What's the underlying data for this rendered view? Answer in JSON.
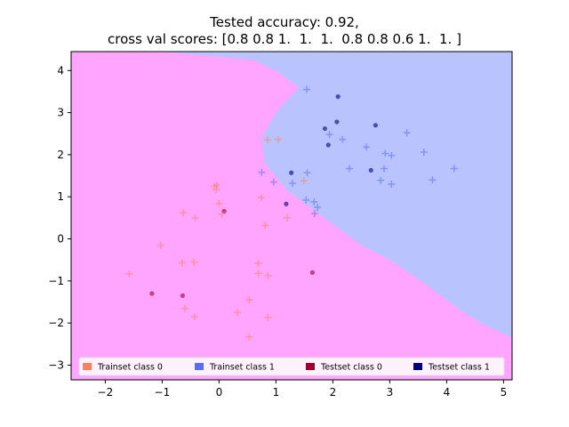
{
  "chart_data": {
    "type": "scatter",
    "title_line1": "Tested accuracy: 0.92,",
    "title_line2": "cross val scores: [0.8 0.8 1.  1.  1.  0.8 0.8 0.6 1.  1. ]",
    "xlabel": "",
    "ylabel": "",
    "xlim": [
      -2.6,
      5.15
    ],
    "ylim": [
      -3.35,
      4.45
    ],
    "xticks": [
      -2,
      -1,
      0,
      1,
      2,
      3,
      4,
      5
    ],
    "yticks": [
      -3,
      -2,
      -1,
      0,
      1,
      2,
      3,
      4
    ],
    "grid": false,
    "legend_position": "lower-center",
    "colors": {
      "region_class0": "#ffa5ff",
      "region_class1": "#b9c4ff",
      "train_class0": "#ff7f5f",
      "train_class1": "#5a6cf5",
      "test_class0": "#a0002a",
      "test_class1": "#000082"
    },
    "decision_boundary": [
      [
        -1.0,
        4.45
      ],
      [
        0.6,
        4.25
      ],
      [
        1.0,
        4.0
      ],
      [
        1.4,
        3.6
      ],
      [
        1.0,
        3.0
      ],
      [
        0.75,
        2.4
      ],
      [
        0.8,
        1.8
      ],
      [
        1.2,
        1.15
      ],
      [
        1.85,
        0.5
      ],
      [
        2.5,
        -0.15
      ],
      [
        3.0,
        -0.5
      ],
      [
        3.5,
        -0.95
      ],
      [
        3.8,
        -1.25
      ],
      [
        4.2,
        -1.65
      ],
      [
        4.6,
        -2.0
      ],
      [
        5.15,
        -2.35
      ]
    ],
    "series": [
      {
        "name": "Trainset class 0",
        "marker": "plus",
        "points": [
          [
            -1.58,
            -0.83
          ],
          [
            -1.03,
            -0.15
          ],
          [
            -0.63,
            0.62
          ],
          [
            -0.42,
            0.5
          ],
          [
            -0.65,
            -0.57
          ],
          [
            -0.44,
            -0.55
          ],
          [
            -0.6,
            -1.65
          ],
          [
            -0.43,
            -1.85
          ],
          [
            -0.08,
            1.25
          ],
          [
            -0.04,
            1.28
          ],
          [
            -0.05,
            1.17
          ],
          [
            0.0,
            0.84
          ],
          [
            0.05,
            0.59
          ],
          [
            0.32,
            -1.75
          ],
          [
            0.53,
            -1.45
          ],
          [
            0.53,
            -2.33
          ],
          [
            0.69,
            -0.58
          ],
          [
            0.69,
            -0.82
          ],
          [
            0.74,
            0.98
          ],
          [
            0.81,
            0.32
          ],
          [
            0.86,
            -0.88
          ],
          [
            0.86,
            -1.87
          ],
          [
            0.85,
            2.35
          ],
          [
            1.04,
            2.36
          ],
          [
            1.2,
            0.5
          ],
          [
            1.49,
            1.38
          ]
        ]
      },
      {
        "name": "Trainset class 1",
        "marker": "plus",
        "points": [
          [
            0.75,
            1.58
          ],
          [
            0.96,
            1.35
          ],
          [
            1.29,
            1.32
          ],
          [
            1.53,
            0.92
          ],
          [
            1.55,
            1.57
          ],
          [
            1.54,
            3.55
          ],
          [
            1.67,
            0.88
          ],
          [
            1.68,
            0.6
          ],
          [
            1.73,
            0.75
          ],
          [
            1.94,
            2.48
          ],
          [
            2.17,
            2.36
          ],
          [
            2.29,
            1.67
          ],
          [
            2.59,
            2.18
          ],
          [
            2.84,
            1.39
          ],
          [
            2.9,
            1.67
          ],
          [
            2.92,
            2.03
          ],
          [
            3.03,
            1.98
          ],
          [
            3.03,
            1.3
          ],
          [
            3.3,
            2.52
          ],
          [
            3.6,
            2.06
          ],
          [
            3.75,
            1.4
          ],
          [
            4.13,
            1.67
          ]
        ]
      },
      {
        "name": "Testset class 0",
        "marker": "dot",
        "points": [
          [
            -1.18,
            -1.3
          ],
          [
            -0.64,
            -1.35
          ],
          [
            0.09,
            0.66
          ],
          [
            1.64,
            -0.8
          ]
        ]
      },
      {
        "name": "Testset class 1",
        "marker": "dot",
        "points": [
          [
            1.18,
            0.83
          ],
          [
            1.27,
            1.57
          ],
          [
            1.86,
            2.62
          ],
          [
            1.92,
            2.23
          ],
          [
            2.07,
            2.78
          ],
          [
            2.09,
            3.38
          ],
          [
            2.67,
            1.63
          ],
          [
            2.75,
            2.7
          ]
        ]
      }
    ]
  }
}
